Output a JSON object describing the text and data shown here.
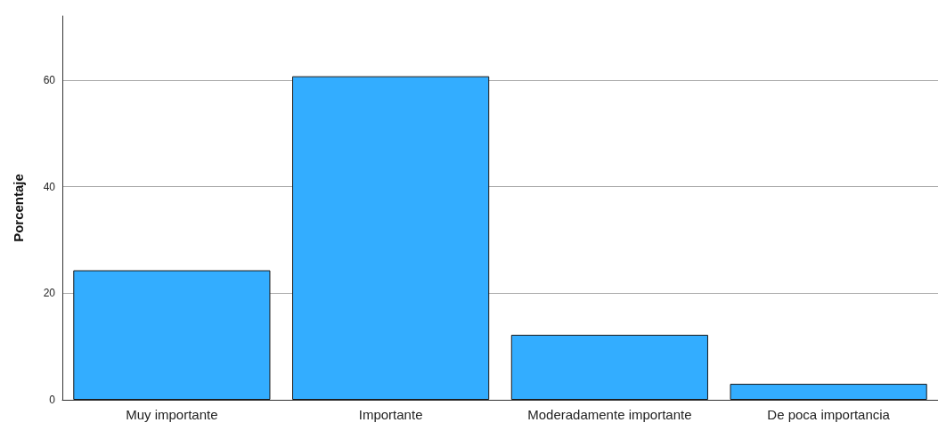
{
  "chart_data": {
    "type": "bar",
    "ylabel": "Porcentaje",
    "categories": [
      "Muy importante",
      "Importante",
      "Moderadamente importante",
      "De poca importancia"
    ],
    "values": [
      24.3,
      60.7,
      12.2,
      3.0
    ],
    "color": "#33adff",
    "ylim": [
      0,
      72
    ],
    "yticks": [
      0,
      20,
      40,
      60
    ],
    "grid": "y"
  }
}
